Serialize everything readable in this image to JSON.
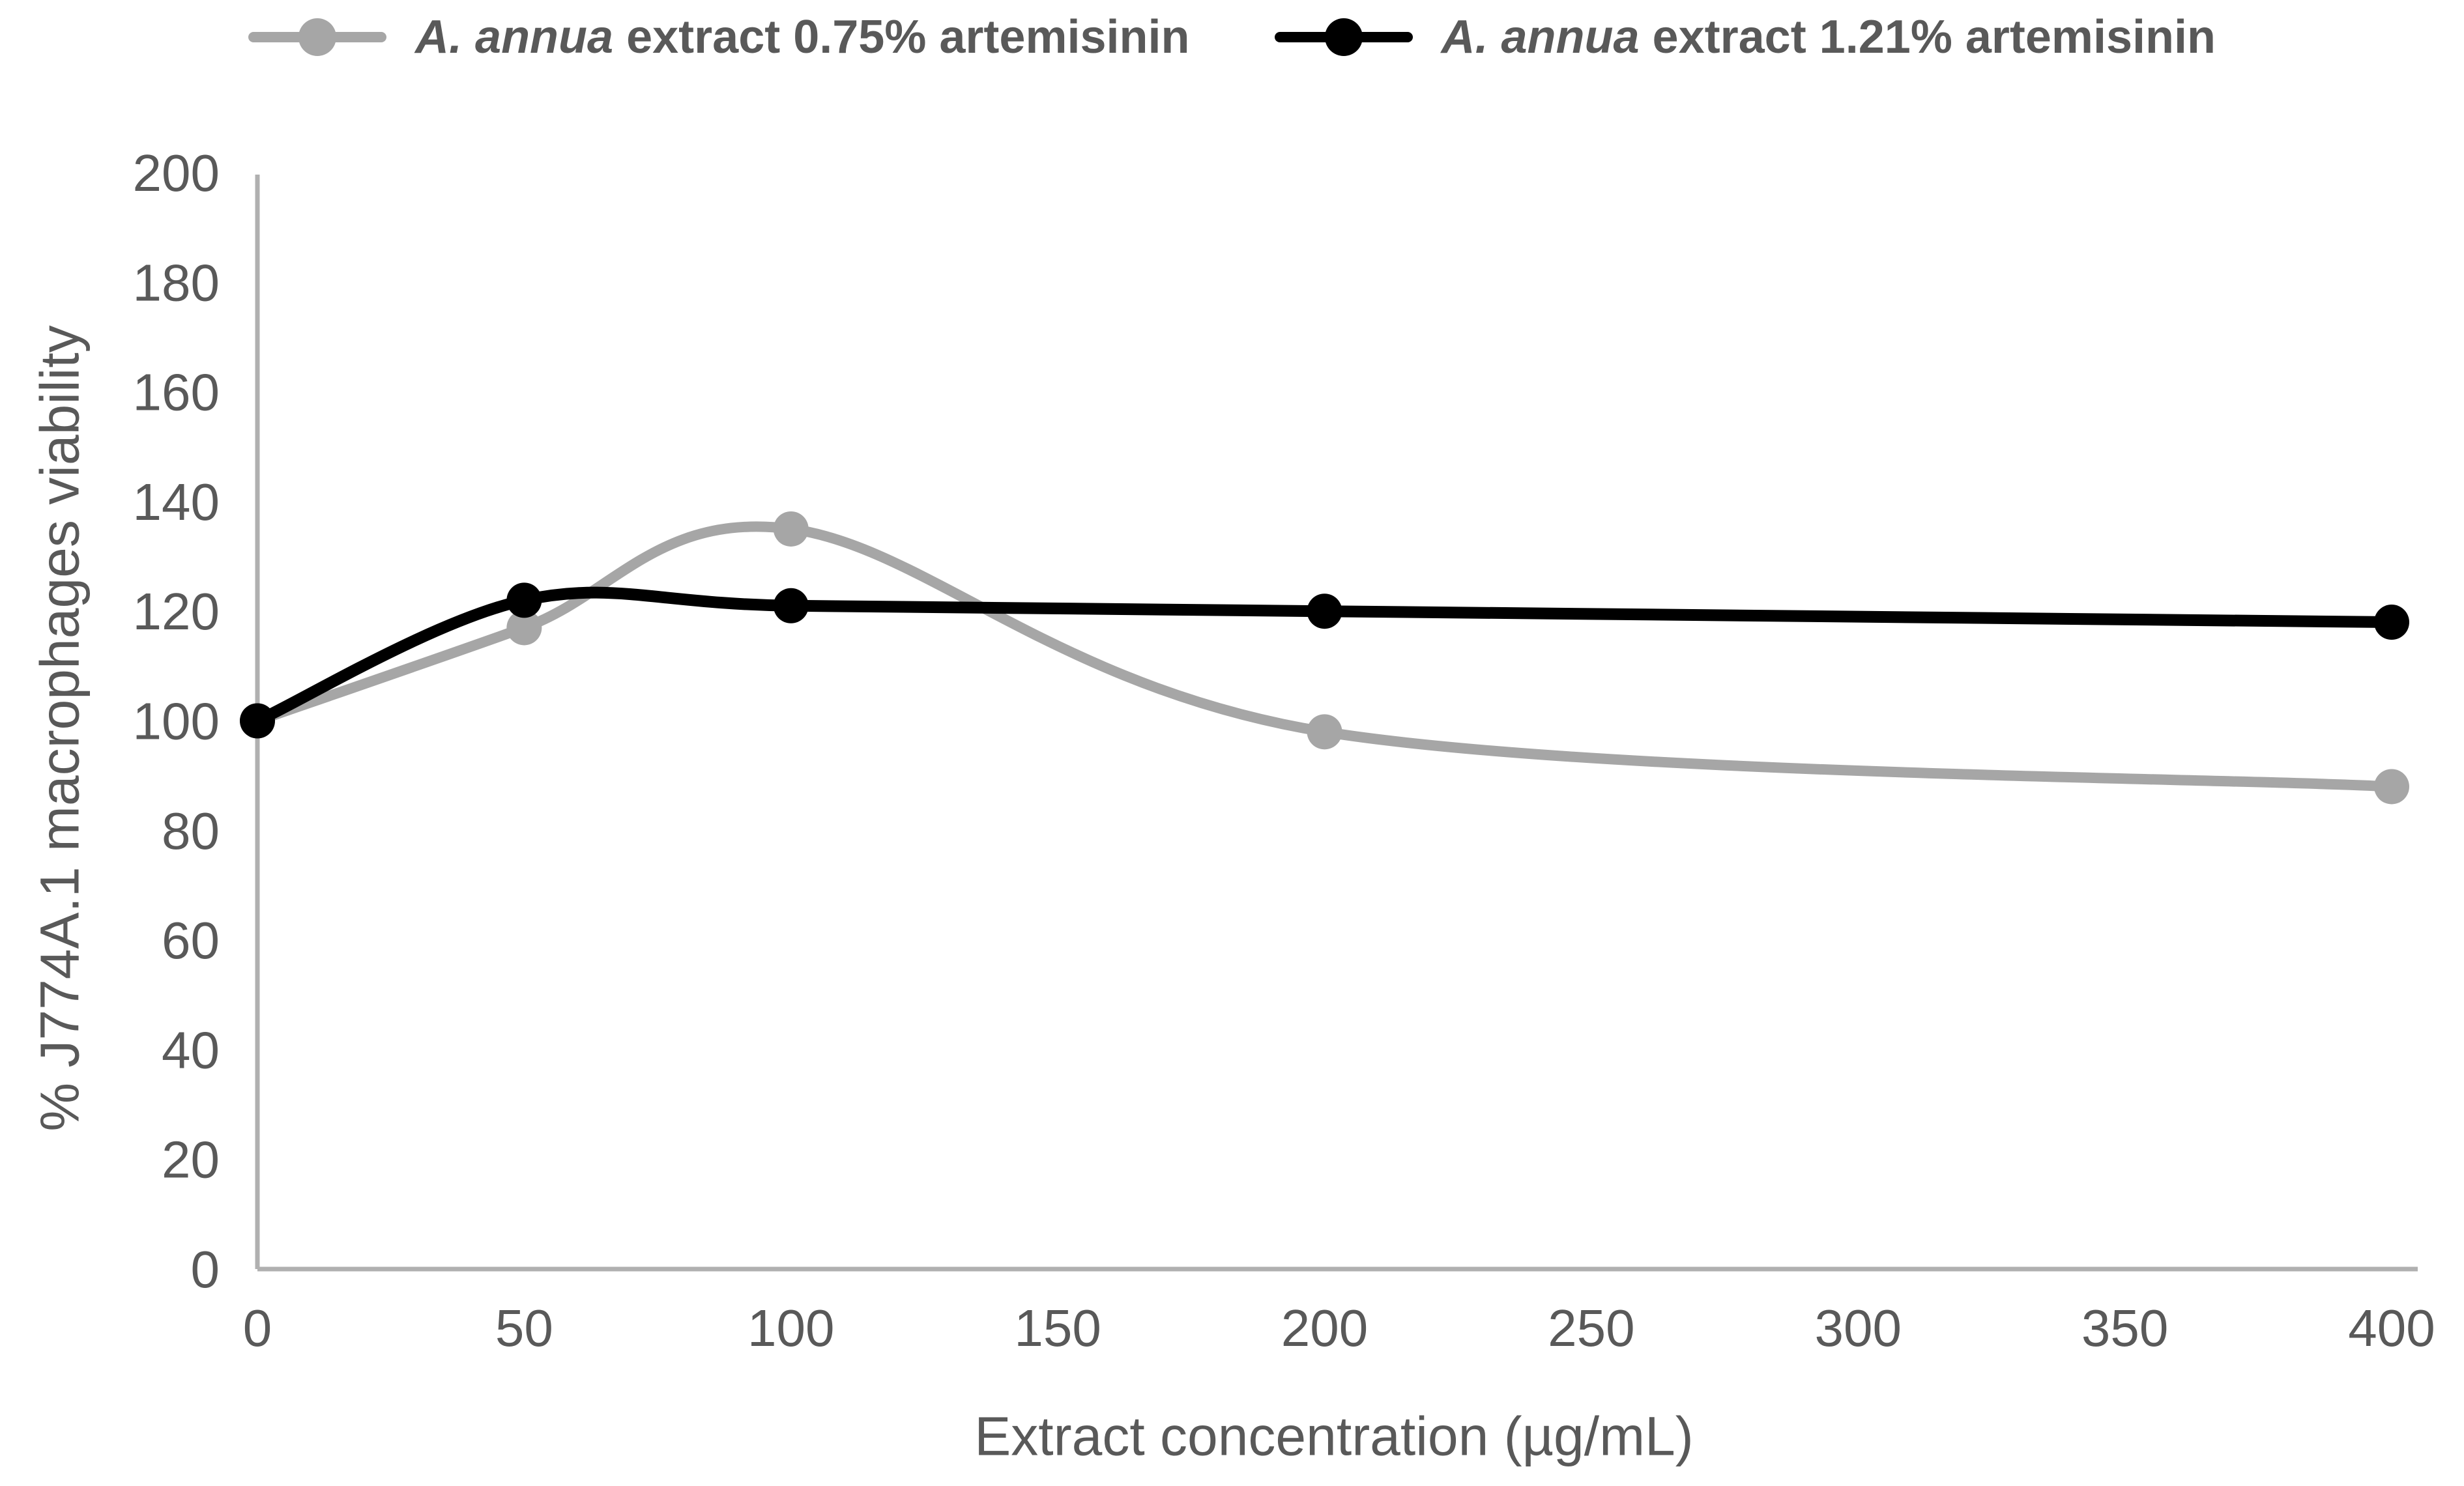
{
  "legend": {
    "items": [
      {
        "species": "A. annua",
        "rest": " extract 0.75% artemisinin",
        "color": "#a6a6a6"
      },
      {
        "species": "A. annua",
        "rest": " extract 1.21% artemisinin",
        "color": "#000000"
      }
    ]
  },
  "chart_data": {
    "type": "line",
    "x": [
      0,
      50,
      100,
      200,
      400
    ],
    "series": [
      {
        "name": "A. annua extract 0.75% artemisinin",
        "color": "#a6a6a6",
        "values": [
          100,
          117,
          135,
          98,
          88
        ]
      },
      {
        "name": "A. annua extract 1.21% artemisinin",
        "color": "#000000",
        "values": [
          100,
          122,
          121,
          120,
          118
        ]
      }
    ],
    "title": "",
    "xlabel": "Extract concentration (µg/mL)",
    "ylabel": "% J774A.1 macrophages viability",
    "x_ticks": [
      0,
      50,
      100,
      150,
      200,
      250,
      300,
      350,
      400
    ],
    "y_ticks": [
      0,
      20,
      40,
      60,
      80,
      100,
      120,
      140,
      160,
      180,
      200
    ],
    "xlim": [
      0,
      400
    ],
    "ylim": [
      0,
      200
    ],
    "grid": false,
    "smooth": true,
    "legend_position": "top",
    "axis_color": "#b0b0b0",
    "text_color": "#595959"
  }
}
